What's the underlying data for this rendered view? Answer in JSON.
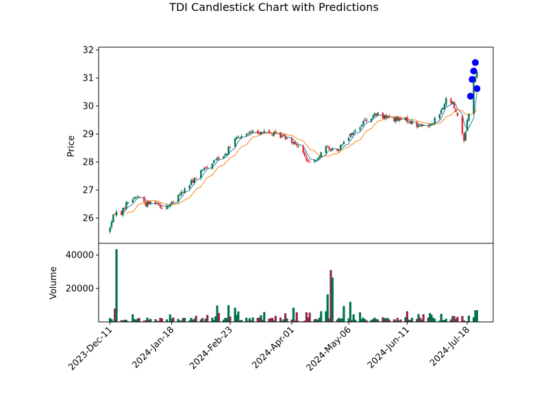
{
  "chart_data": {
    "type": "candlestick",
    "title": "TDI Candlestick Chart with Predictions",
    "price_panel": {
      "ylabel": "Price",
      "ylim": [
        25.1,
        32.1
      ],
      "yticks": [
        26,
        27,
        28,
        29,
        30,
        31,
        32
      ],
      "grid": false
    },
    "volume_panel": {
      "ylabel": "Volume",
      "ylim": [
        0,
        47000
      ],
      "yticks": [
        20000,
        40000
      ],
      "grid": false
    },
    "xlim": [
      "2023-Dec-04",
      "2024-Aug-03"
    ],
    "xticks": [
      "2023-Dec-11",
      "2024-Jan-18",
      "2024-Feb-23",
      "2024-Apr-01",
      "2024-May-06",
      "2024-Jun-11",
      "2024-Jul-18"
    ],
    "price_anchors": [
      [
        "2023-Dec-11",
        25.7
      ],
      [
        "2023-Dec-14",
        26.2
      ],
      [
        "2023-Dec-18",
        26.2
      ],
      [
        "2023-Dec-22",
        26.6
      ],
      [
        "2023-Dec-28",
        26.8
      ],
      [
        "2024-Jan-02",
        26.5
      ],
      [
        "2024-Jan-08",
        26.6
      ],
      [
        "2024-Jan-12",
        26.4
      ],
      [
        "2024-Jan-18",
        26.5
      ],
      [
        "2024-Jan-24",
        26.9
      ],
      [
        "2024-Feb-01",
        27.4
      ],
      [
        "2024-Feb-08",
        27.8
      ],
      [
        "2024-Feb-14",
        28.1
      ],
      [
        "2024-Feb-20",
        28.3
      ],
      [
        "2024-Feb-26",
        28.8
      ],
      [
        "2024-Mar-04",
        29.0
      ],
      [
        "2024-Mar-12",
        29.1
      ],
      [
        "2024-Mar-20",
        29.0
      ],
      [
        "2024-Mar-28",
        28.9
      ],
      [
        "2024-Apr-03",
        28.7
      ],
      [
        "2024-Apr-08",
        28.3
      ],
      [
        "2024-Apr-12",
        27.9
      ],
      [
        "2024-Apr-17",
        28.2
      ],
      [
        "2024-Apr-22",
        28.5
      ],
      [
        "2024-Apr-29",
        28.4
      ],
      [
        "2024-May-03",
        28.8
      ],
      [
        "2024-May-10",
        29.1
      ],
      [
        "2024-May-16",
        29.5
      ],
      [
        "2024-May-23",
        29.7
      ],
      [
        "2024-May-30",
        29.6
      ],
      [
        "2024-Jun-05",
        29.5
      ],
      [
        "2024-Jun-11",
        29.5
      ],
      [
        "2024-Jun-17",
        29.3
      ],
      [
        "2024-Jun-24",
        29.3
      ],
      [
        "2024-Jul-01",
        29.7
      ],
      [
        "2024-Jul-05",
        30.2
      ],
      [
        "2024-Jul-09",
        30.1
      ],
      [
        "2024-Jul-13",
        29.5
      ],
      [
        "2024-Jul-16",
        28.8
      ],
      [
        "2024-Jul-19",
        29.8
      ],
      [
        "2024-Jul-22",
        30.8
      ],
      [
        "2024-Jul-24",
        31.3
      ]
    ],
    "volume_spikes": [
      [
        "2023-Dec-15",
        43500
      ],
      [
        "2023-Dec-16",
        12500
      ],
      [
        "2023-Dec-14",
        8000
      ],
      [
        "2024-Feb-15",
        9800
      ],
      [
        "2024-Feb-22",
        10000
      ],
      [
        "2024-Feb-26",
        8500
      ],
      [
        "2024-Apr-02",
        8500
      ],
      [
        "2024-Apr-23",
        16500
      ],
      [
        "2024-Apr-25",
        31000
      ],
      [
        "2024-Apr-26",
        26500
      ],
      [
        "2024-May-03",
        9500
      ],
      [
        "2024-May-07",
        12000
      ],
      [
        "2024-Jun-29",
        11500
      ],
      [
        "2024-Jul-13",
        7000
      ],
      [
        "2024-Jul-23",
        7000
      ],
      [
        "2024-Jul-24",
        7000
      ]
    ],
    "predictions": [
      [
        "2024-Jul-20",
        30.35
      ],
      [
        "2024-Jul-21",
        30.95
      ],
      [
        "2024-Jul-22",
        31.25
      ],
      [
        "2024-Jul-23",
        31.55
      ],
      [
        "2024-Jul-24",
        30.62
      ]
    ],
    "colors": {
      "up": "#00724a",
      "down": "#e8262e",
      "volume_up": "#00724a",
      "volume_down": "#8e2846",
      "line_fast": "#1f77b4",
      "line_slow": "#ff7f0e",
      "prediction": "#0000ff"
    }
  }
}
